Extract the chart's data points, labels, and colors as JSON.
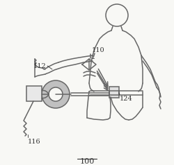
{
  "bg_color": "#f8f8f5",
  "line_color": "#666666",
  "label_color": "#333333",
  "fig_width": 2.5,
  "fig_height": 2.38,
  "dpi": 100
}
